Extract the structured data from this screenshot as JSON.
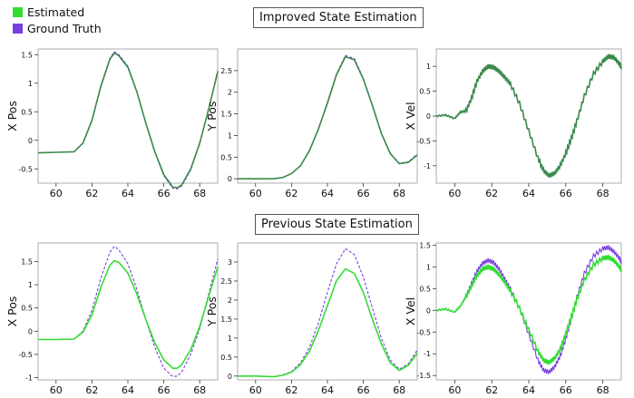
{
  "legend": {
    "estimated_label": "Estimated",
    "ground_truth_label": "Ground Truth",
    "estimated_color": "#33dd33",
    "ground_truth_color": "#7a3fe0"
  },
  "rows": [
    {
      "title": "Improved State Estimation"
    },
    {
      "title": "Previous State Estimation"
    }
  ],
  "chart_data": [
    {
      "type": "line",
      "title": "",
      "xlabel": "",
      "ylabel": "X Pos",
      "xlim": [
        59,
        69
      ],
      "ylim": [
        -0.75,
        1.6
      ],
      "xticks": [
        60,
        62,
        64,
        66,
        68
      ],
      "yticks": [
        -0.5,
        0,
        0.5,
        1,
        1.5
      ],
      "ytick_labels": [
        "-0.5",
        "0",
        "0.5",
        "1",
        "1.5"
      ],
      "series": [
        {
          "name": "Estimated",
          "style": "solid",
          "x": [
            59,
            60,
            61,
            61.5,
            62,
            62.5,
            63,
            63.25,
            63.5,
            64,
            64.5,
            65,
            65.5,
            66,
            66.5,
            66.75,
            67,
            67.5,
            68,
            68.5,
            69
          ],
          "y": [
            -0.22,
            -0.21,
            -0.2,
            -0.05,
            0.35,
            0.95,
            1.42,
            1.53,
            1.48,
            1.28,
            0.85,
            0.3,
            -0.2,
            -0.6,
            -0.82,
            -0.83,
            -0.78,
            -0.5,
            -0.05,
            0.55,
            1.2
          ]
        },
        {
          "name": "Ground Truth",
          "style": "dashed",
          "x": [
            59,
            60,
            61,
            61.5,
            62,
            62.5,
            63,
            63.25,
            63.5,
            64,
            64.5,
            65,
            65.5,
            66,
            66.5,
            66.75,
            67,
            67.5,
            68,
            68.5,
            69
          ],
          "y": [
            -0.22,
            -0.21,
            -0.2,
            -0.04,
            0.36,
            0.97,
            1.44,
            1.55,
            1.5,
            1.3,
            0.86,
            0.3,
            -0.21,
            -0.62,
            -0.84,
            -0.85,
            -0.8,
            -0.52,
            -0.06,
            0.55,
            1.22
          ]
        }
      ]
    },
    {
      "type": "line",
      "title": "",
      "xlabel": "",
      "ylabel": "Y Pos",
      "xlim": [
        59,
        69
      ],
      "ylim": [
        -0.1,
        3.0
      ],
      "xticks": [
        60,
        62,
        64,
        66,
        68
      ],
      "yticks": [
        0,
        0.5,
        1,
        1.5,
        2,
        2.5
      ],
      "ytick_labels": [
        "0",
        "0.5",
        "1",
        "1.5",
        "2",
        "2.5"
      ],
      "series": [
        {
          "name": "Estimated",
          "style": "solid",
          "x": [
            59,
            60,
            61,
            61.5,
            62,
            62.5,
            63,
            63.5,
            64,
            64.5,
            65,
            65.5,
            66,
            66.5,
            67,
            67.5,
            68,
            68.5,
            69
          ],
          "y": [
            0,
            0,
            0,
            0.03,
            0.12,
            0.3,
            0.65,
            1.15,
            1.75,
            2.4,
            2.82,
            2.75,
            2.3,
            1.7,
            1.05,
            0.58,
            0.35,
            0.38,
            0.55
          ]
        },
        {
          "name": "Ground Truth",
          "style": "dashed",
          "x": [
            59,
            60,
            61,
            61.5,
            62,
            62.5,
            63,
            63.5,
            64,
            64.5,
            65,
            65.5,
            66,
            66.5,
            67,
            67.5,
            68,
            68.5,
            69
          ],
          "y": [
            0,
            0,
            0,
            0.03,
            0.12,
            0.31,
            0.66,
            1.16,
            1.77,
            2.42,
            2.85,
            2.78,
            2.32,
            1.72,
            1.06,
            0.59,
            0.36,
            0.39,
            0.57
          ]
        }
      ]
    },
    {
      "type": "line",
      "title": "",
      "xlabel": "",
      "ylabel": "X Vel",
      "xlim": [
        59,
        69
      ],
      "ylim": [
        -1.35,
        1.35
      ],
      "xticks": [
        60,
        62,
        64,
        66,
        68
      ],
      "yticks": [
        -1,
        -0.5,
        0,
        0.5,
        1
      ],
      "ytick_labels": [
        "-1",
        "-0.5",
        "0",
        "0.5",
        "1"
      ],
      "series": [
        {
          "name": "Estimated",
          "style": "solid",
          "x": [
            59,
            59.5,
            60,
            60.3,
            60.6,
            60.9,
            61.2,
            61.5,
            61.8,
            62.1,
            62.4,
            62.7,
            63,
            63.5,
            64,
            64.5,
            64.8,
            65.1,
            65.4,
            65.7,
            66,
            66.3,
            66.6,
            67,
            67.5,
            68,
            68.3,
            68.6,
            68.9,
            69
          ],
          "y": [
            0,
            0.02,
            -0.05,
            0.08,
            0.1,
            0.35,
            0.7,
            0.9,
            1.0,
            0.98,
            0.9,
            0.78,
            0.65,
            0.25,
            -0.3,
            -0.85,
            -1.1,
            -1.2,
            -1.15,
            -1.0,
            -0.75,
            -0.45,
            -0.1,
            0.4,
            0.85,
            1.1,
            1.2,
            1.18,
            1.05,
            0.98
          ]
        },
        {
          "name": "Ground Truth",
          "style": "dashed",
          "x": [
            59,
            59.5,
            60,
            60.3,
            60.6,
            60.9,
            61.2,
            61.5,
            61.8,
            62.1,
            62.4,
            62.7,
            63,
            63.5,
            64,
            64.5,
            64.8,
            65.1,
            65.4,
            65.7,
            66,
            66.3,
            66.6,
            67,
            67.5,
            68,
            68.3,
            68.6,
            68.9,
            69
          ],
          "y": [
            0,
            0.02,
            -0.05,
            0.08,
            0.1,
            0.35,
            0.7,
            0.9,
            1.0,
            0.98,
            0.9,
            0.78,
            0.65,
            0.25,
            -0.3,
            -0.85,
            -1.1,
            -1.2,
            -1.15,
            -1.0,
            -0.75,
            -0.45,
            -0.1,
            0.4,
            0.85,
            1.1,
            1.2,
            1.18,
            1.05,
            0.98
          ]
        }
      ]
    },
    {
      "type": "line",
      "title": "",
      "xlabel": "",
      "ylabel": "X Pos",
      "xlim": [
        59,
        69
      ],
      "ylim": [
        -1.05,
        1.9
      ],
      "xticks": [
        60,
        62,
        64,
        66,
        68
      ],
      "yticks": [
        -1,
        -0.5,
        0,
        0.5,
        1,
        1.5
      ],
      "ytick_labels": [
        "-1",
        "-0.5",
        "0",
        "0.5",
        "1",
        "1.5"
      ],
      "series": [
        {
          "name": "Estimated",
          "style": "solid",
          "x": [
            59,
            60,
            61,
            61.5,
            62,
            62.5,
            63,
            63.25,
            63.5,
            64,
            64.5,
            65,
            65.5,
            66,
            66.5,
            66.75,
            67,
            67.5,
            68,
            68.5,
            69
          ],
          "y": [
            -0.18,
            -0.18,
            -0.17,
            -0.02,
            0.35,
            0.95,
            1.42,
            1.52,
            1.48,
            1.25,
            0.8,
            0.25,
            -0.25,
            -0.62,
            -0.8,
            -0.8,
            -0.72,
            -0.4,
            0.1,
            0.75,
            1.38
          ]
        },
        {
          "name": "Ground Truth",
          "style": "dashed",
          "x": [
            59,
            60,
            61,
            61.5,
            62,
            62.5,
            63,
            63.25,
            63.5,
            64,
            64.5,
            65,
            65.5,
            66,
            66.5,
            66.75,
            67,
            67.5,
            68,
            68.5,
            69
          ],
          "y": [
            -0.18,
            -0.18,
            -0.17,
            0.0,
            0.45,
            1.15,
            1.7,
            1.83,
            1.75,
            1.45,
            0.9,
            0.25,
            -0.35,
            -0.8,
            -0.98,
            -0.97,
            -0.88,
            -0.5,
            0.05,
            0.8,
            1.55
          ]
        }
      ]
    },
    {
      "type": "line",
      "title": "",
      "xlabel": "",
      "ylabel": "Y Pos",
      "xlim": [
        59,
        69
      ],
      "ylim": [
        -0.1,
        3.5
      ],
      "xticks": [
        60,
        62,
        64,
        66,
        68
      ],
      "yticks": [
        0,
        0.5,
        1,
        1.5,
        2,
        2.5,
        3
      ],
      "ytick_labels": [
        "0",
        "0.5",
        "1",
        "1.5",
        "2",
        "2.5",
        "3"
      ],
      "series": [
        {
          "name": "Estimated",
          "style": "solid",
          "x": [
            59,
            60,
            61,
            61.5,
            62,
            62.5,
            63,
            63.5,
            64,
            64.5,
            65,
            65.5,
            66,
            66.5,
            67,
            67.5,
            68,
            68.5,
            69
          ],
          "y": [
            0,
            0,
            -0.02,
            0.02,
            0.1,
            0.3,
            0.65,
            1.2,
            1.85,
            2.5,
            2.82,
            2.7,
            2.2,
            1.5,
            0.85,
            0.35,
            0.15,
            0.28,
            0.6
          ]
        },
        {
          "name": "Ground Truth",
          "style": "dashed",
          "x": [
            59,
            60,
            61,
            61.5,
            62,
            62.5,
            63,
            63.5,
            64,
            64.5,
            65,
            65.5,
            66,
            66.5,
            67,
            67.5,
            68,
            68.5,
            69
          ],
          "y": [
            0,
            0,
            -0.02,
            0.03,
            0.12,
            0.35,
            0.75,
            1.4,
            2.2,
            2.95,
            3.35,
            3.2,
            2.6,
            1.8,
            1.0,
            0.42,
            0.18,
            0.32,
            0.68
          ]
        }
      ]
    },
    {
      "type": "line",
      "title": "",
      "xlabel": "",
      "ylabel": "X Vel",
      "xlim": [
        59,
        69
      ],
      "ylim": [
        -1.6,
        1.55
      ],
      "xticks": [
        60,
        62,
        64,
        66,
        68
      ],
      "yticks": [
        -1.5,
        -1,
        -0.5,
        0,
        0.5,
        1,
        1.5
      ],
      "ytick_labels": [
        "-1.5",
        "-1",
        "-0.5",
        "0",
        "0.5",
        "1",
        "1.5"
      ],
      "series": [
        {
          "name": "Estimated",
          "style": "solid",
          "x": [
            59,
            59.5,
            60,
            60.3,
            60.6,
            60.9,
            61.2,
            61.5,
            61.8,
            62.1,
            62.4,
            62.7,
            63,
            63.5,
            64,
            64.5,
            64.8,
            65.1,
            65.4,
            65.7,
            66,
            66.3,
            66.6,
            67,
            67.5,
            68,
            68.3,
            68.6,
            68.9,
            69
          ],
          "y": [
            0,
            0.03,
            -0.04,
            0.1,
            0.3,
            0.55,
            0.8,
            0.95,
            1.0,
            0.95,
            0.82,
            0.65,
            0.45,
            0.05,
            -0.45,
            -0.95,
            -1.15,
            -1.2,
            -1.1,
            -0.9,
            -0.55,
            -0.15,
            0.25,
            0.7,
            1.05,
            1.2,
            1.22,
            1.15,
            1.0,
            0.92
          ]
        },
        {
          "name": "Ground Truth",
          "style": "solid",
          "x": [
            59,
            59.5,
            60,
            60.3,
            60.6,
            60.9,
            61.2,
            61.5,
            61.8,
            62.1,
            62.4,
            62.7,
            63,
            63.5,
            64,
            64.5,
            64.8,
            65.1,
            65.4,
            65.7,
            66,
            66.3,
            66.6,
            67,
            67.5,
            68,
            68.3,
            68.6,
            68.9,
            69
          ],
          "y": [
            0,
            0.03,
            -0.04,
            0.1,
            0.32,
            0.6,
            0.9,
            1.08,
            1.15,
            1.1,
            0.95,
            0.72,
            0.5,
            0.05,
            -0.55,
            -1.15,
            -1.38,
            -1.42,
            -1.3,
            -1.05,
            -0.65,
            -0.2,
            0.3,
            0.85,
            1.25,
            1.42,
            1.45,
            1.35,
            1.2,
            1.1
          ]
        }
      ]
    }
  ]
}
